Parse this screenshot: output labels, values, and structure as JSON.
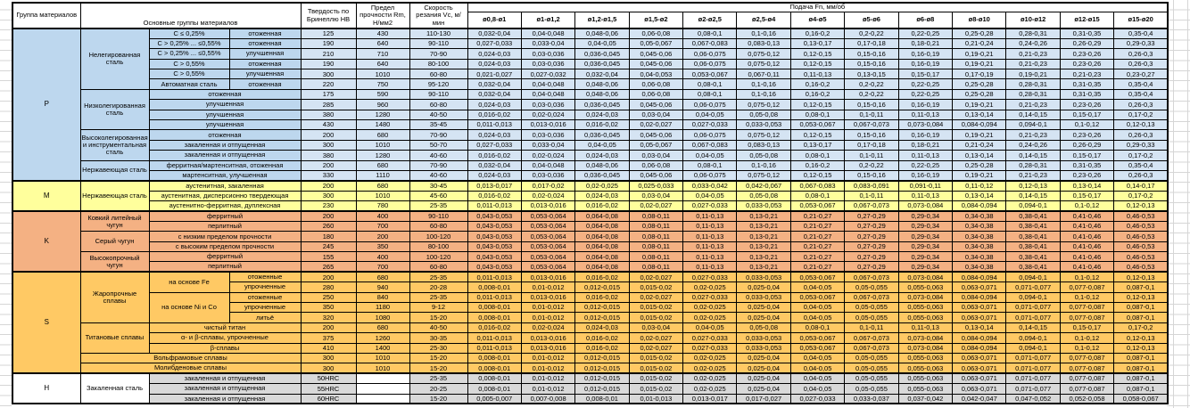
{
  "header": {
    "col_group": "Группа материалов",
    "col_main": "Основные группы материалов",
    "col_hb": "Твердость по Бринеллю HB",
    "col_rm": "Предел прочности Rm, Н/мм2",
    "col_vc": "Скорость резания Vc, м/мин",
    "feed_title": "Подача Fn, мм/об",
    "diameters": [
      "ø0,8-ø1",
      "ø1-ø1,2",
      "ø1,2-ø1,5",
      "ø1,5-ø2",
      "ø2-ø2,5",
      "ø2,5-ø4",
      "ø4-ø5",
      "ø5-ø6",
      "ø6-ø8",
      "ø8-ø10",
      "ø10-ø12",
      "ø12-ø15",
      "ø15-ø20"
    ]
  },
  "feed_sets": {
    "fs1": [
      "0,032-0,04",
      "0,04-0,048",
      "0,048-0,06",
      "0,06-0,08",
      "0,08-0,1",
      "0,1-0,16",
      "0,16-0,2",
      "0,2-0,22",
      "0,22-0,25",
      "0,25-0,28",
      "0,28-0,31",
      "0,31-0,35",
      "0,35-0,4"
    ],
    "fs2": [
      "0,027-0,033",
      "0,033-0,04",
      "0,04-0,05",
      "0,05-0,067",
      "0,067-0,083",
      "0,083-0,13",
      "0,13-0,17",
      "0,17-0,18",
      "0,18-0,21",
      "0,21-0,24",
      "0,24-0,26",
      "0,26-0,29",
      "0,29-0,33"
    ],
    "fs3": [
      "0,024-0,03",
      "0,03-0,036",
      "0,036-0,045",
      "0,045-0,06",
      "0,06-0,075",
      "0,075-0,12",
      "0,12-0,15",
      "0,15-0,16",
      "0,16-0,19",
      "0,19-0,21",
      "0,21-0,23",
      "0,23-0,26",
      "0,26-0,3"
    ],
    "fs4": [
      "0,021-0,027",
      "0,027-0,032",
      "0,032-0,04",
      "0,04-0,053",
      "0,053-0,067",
      "0,067-0,11",
      "0,11-0,13",
      "0,13-0,15",
      "0,15-0,17",
      "0,17-0,19",
      "0,19-0,21",
      "0,21-0,23",
      "0,23-0,27"
    ],
    "fs5": [
      "0,016-0,02",
      "0,02-0,024",
      "0,024-0,03",
      "0,03-0,04",
      "0,04-0,05",
      "0,05-0,08",
      "0,08-0,1",
      "0,1-0,11",
      "0,11-0,13",
      "0,13-0,14",
      "0,14-0,15",
      "0,15-0,17",
      "0,17-0,2"
    ],
    "fs6": [
      "0,011-0,013",
      "0,013-0,016",
      "0,016-0,02",
      "0,02-0,027",
      "0,027-0,033",
      "0,033-0,053",
      "0,053-0,067",
      "0,067-0,073",
      "0,073-0,084",
      "0,084-0,094",
      "0,094-0,1",
      "0,1-0,12",
      "0,12-0,13"
    ],
    "fs7": [
      "0,013-0,017",
      "0,017-0,02",
      "0,02-0,025",
      "0,025-0,033",
      "0,033-0,042",
      "0,042-0,067",
      "0,067-0,083",
      "0,083-0,091",
      "0,091-0,11",
      "0,11-0,12",
      "0,12-0,13",
      "0,13-0,14",
      "0,14-0,17"
    ],
    "fs8": [
      "0,043-0,053",
      "0,053-0,064",
      "0,064-0,08",
      "0,08-0,11",
      "0,11-0,13",
      "0,13-0,21",
      "0,21-0,27",
      "0,27-0,29",
      "0,29-0,34",
      "0,34-0,38",
      "0,38-0,41",
      "0,41-0,46",
      "0,46-0,53"
    ],
    "fs9": [
      "0,008-0,01",
      "0,01-0,012",
      "0,012-0,015",
      "0,015-0,02",
      "0,02-0,025",
      "0,025-0,04",
      "0,04-0,05",
      "0,05-0,055",
      "0,055-0,063",
      "0,063-0,071",
      "0,071-0,077",
      "0,077-0,087",
      "0,087-0,1"
    ],
    "fs10": [
      "0,005-0,007",
      "0,007-0,008",
      "0,008-0,01",
      "0,01-0,013",
      "0,013-0,017",
      "0,017-0,027",
      "0,027-0,033",
      "0,033-0,037",
      "0,037-0,042",
      "0,042-0,047",
      "0,047-0,052",
      "0,052-0,058",
      "0,058-0,067"
    ]
  },
  "groups": [
    {
      "letter": "P",
      "label_bg": "#BDD7EE",
      "data_bg": "#D5E4F3",
      "rows": [
        {
          "labels": [
            {
              "text": "Нелегированная сталь",
              "rowspan": 6
            },
            {
              "text": "C ≤ 0,25%"
            },
            {
              "text": "отоженная"
            }
          ],
          "hb": "125",
          "rm": "430",
          "vc": "110-130",
          "feed_set": "fs1"
        },
        {
          "labels": [
            {
              "text": "C > 0,25% ... ≤0,55%"
            },
            {
              "text": "отоженная"
            }
          ],
          "hb": "190",
          "rm": "640",
          "vc": "90-110",
          "feed_set": "fs2"
        },
        {
          "labels": [
            {
              "text": "C > 0,25% ... ≤0,55%"
            },
            {
              "text": "улучшенная"
            }
          ],
          "hb": "210",
          "rm": "710",
          "vc": "70-90",
          "feed_set": "fs3"
        },
        {
          "labels": [
            {
              "text": "C > 0,55%"
            },
            {
              "text": "отоженная"
            }
          ],
          "hb": "190",
          "rm": "640",
          "vc": "80-100",
          "feed_set": "fs3"
        },
        {
          "labels": [
            {
              "text": "C > 0,55%"
            },
            {
              "text": "улучшенная"
            }
          ],
          "hb": "300",
          "rm": "1010",
          "vc": "60-80",
          "feed_set": "fs4"
        },
        {
          "labels": [
            {
              "text": "Автоматная сталь"
            },
            {
              "text": "отоженная"
            }
          ],
          "hb": "220",
          "rm": "750",
          "vc": "95-120",
          "feed_set": "fs1"
        },
        {
          "labels": [
            {
              "text": "Низколегированная сталь",
              "rowspan": 4
            },
            {
              "text": "отоженная",
              "colspan": 2
            }
          ],
          "hb": "175",
          "rm": "590",
          "vc": "90-110",
          "feed_set": "fs1"
        },
        {
          "labels": [
            {
              "text": "улучшенная",
              "colspan": 2
            }
          ],
          "hb": "285",
          "rm": "960",
          "vc": "60-80",
          "feed_set": "fs3"
        },
        {
          "labels": [
            {
              "text": "улучшенная",
              "colspan": 2
            }
          ],
          "hb": "380",
          "rm": "1280",
          "vc": "40-50",
          "feed_set": "fs5"
        },
        {
          "labels": [
            {
              "text": "улучшенная",
              "colspan": 2
            }
          ],
          "hb": "430",
          "rm": "1480",
          "vc": "35-45",
          "feed_set": "fs6"
        },
        {
          "labels": [
            {
              "text": "Высоколегированная и инструментальная сталь",
              "rowspan": 3
            },
            {
              "text": "отоженная",
              "colspan": 2
            }
          ],
          "hb": "200",
          "rm": "680",
          "vc": "70-90",
          "feed_set": "fs3"
        },
        {
          "labels": [
            {
              "text": "закаленная и отпущенная",
              "colspan": 2
            }
          ],
          "hb": "300",
          "rm": "1010",
          "vc": "50-70",
          "feed_set": "fs2"
        },
        {
          "labels": [
            {
              "text": "закаленная и отпущенная",
              "colspan": 2
            }
          ],
          "hb": "380",
          "rm": "1280",
          "vc": "40-60",
          "feed_set": "fs5"
        },
        {
          "labels": [
            {
              "text": "Нержавеющая сталь",
              "rowspan": 2
            },
            {
              "text": "ферритная/мартенситная, отоженная",
              "colspan": 2
            }
          ],
          "hb": "200",
          "rm": "680",
          "vc": "70-90",
          "feed_set": "fs1"
        },
        {
          "labels": [
            {
              "text": "мартенситная, улучшенная",
              "colspan": 2
            }
          ],
          "hb": "330",
          "rm": "1110",
          "vc": "40-60",
          "feed_set": "fs3"
        }
      ]
    },
    {
      "letter": "M",
      "label_bg": "#FFFF9C",
      "data_bg": "#FFFF9C",
      "rows": [
        {
          "labels": [
            {
              "text": "Нержавеющая сталь",
              "rowspan": 3
            },
            {
              "text": "аустенитная, закаленная",
              "colspan": 2
            }
          ],
          "hb": "200",
          "rm": "680",
          "vc": "30-45",
          "feed_set": "fs7"
        },
        {
          "labels": [
            {
              "text": "аустенитная, дисперсионно твердеющая",
              "colspan": 2
            }
          ],
          "hb": "300",
          "rm": "1010",
          "vc": "45-60",
          "feed_set": "fs5"
        },
        {
          "labels": [
            {
              "text": "аустенитно-ферритная, дуплексная",
              "colspan": 2
            }
          ],
          "hb": "230",
          "rm": "780",
          "vc": "25-35",
          "feed_set": "fs6"
        }
      ]
    },
    {
      "letter": "K",
      "label_bg": "#F4B183",
      "data_bg": "#F4B183",
      "rows": [
        {
          "labels": [
            {
              "text": "Ковкий литейный чугун",
              "rowspan": 2
            },
            {
              "text": "ферритный",
              "colspan": 2
            }
          ],
          "hb": "200",
          "rm": "400",
          "vc": "90-110",
          "feed_set": "fs8"
        },
        {
          "labels": [
            {
              "text": "перлитный",
              "colspan": 2
            }
          ],
          "hb": "260",
          "rm": "700",
          "vc": "60-80",
          "feed_set": "fs8"
        },
        {
          "labels": [
            {
              "text": "Серый чугун",
              "rowspan": 2
            },
            {
              "text": "с низким пределом прочности",
              "colspan": 2
            }
          ],
          "hb": "180",
          "rm": "200",
          "vc": "100-120",
          "feed_set": "fs8"
        },
        {
          "labels": [
            {
              "text": "с высоким пределом прочности",
              "colspan": 2
            }
          ],
          "hb": "245",
          "rm": "350",
          "vc": "80-100",
          "feed_set": "fs8"
        },
        {
          "labels": [
            {
              "text": "Высокопрочный чугун",
              "rowspan": 2
            },
            {
              "text": "ферритный",
              "colspan": 2
            }
          ],
          "hb": "155",
          "rm": "400",
          "vc": "100-120",
          "feed_set": "fs8"
        },
        {
          "labels": [
            {
              "text": "перлитный",
              "colspan": 2
            }
          ],
          "hb": "265",
          "rm": "700",
          "vc": "60-80",
          "feed_set": "fs8"
        }
      ]
    },
    {
      "letter": "S",
      "label_bg": "#FFC964",
      "data_bg": "#FFC964",
      "rows": [
        {
          "labels": [
            {
              "text": "Жаропрочные сплавы",
              "rowspan": 5
            },
            {
              "text": "на основе Fe",
              "rowspan": 2
            },
            {
              "text": "отоженные"
            }
          ],
          "hb": "200",
          "rm": "680",
          "vc": "25-35",
          "feed_set": "fs6"
        },
        {
          "labels": [
            {
              "text": "упрочненные"
            }
          ],
          "hb": "280",
          "rm": "940",
          "vc": "20-28",
          "feed_set": "fs9"
        },
        {
          "labels": [
            {
              "text": "на основе Ni и Co",
              "rowspan": 3
            },
            {
              "text": "отоженные"
            }
          ],
          "hb": "250",
          "rm": "840",
          "vc": "25-35",
          "feed_set": "fs6"
        },
        {
          "labels": [
            {
              "text": "упрочненные"
            }
          ],
          "hb": "350",
          "rm": "1180",
          "vc": "9-12",
          "feed_set": "fs9"
        },
        {
          "labels": [
            {
              "text": "литьё"
            }
          ],
          "hb": "320",
          "rm": "1080",
          "vc": "15-20",
          "feed_set": "fs9"
        },
        {
          "labels": [
            {
              "text": "Титановые сплавы",
              "rowspan": 3
            },
            {
              "text": "чистый титан",
              "colspan": 2
            }
          ],
          "hb": "200",
          "rm": "680",
          "vc": "40-50",
          "feed_set": "fs5"
        },
        {
          "labels": [
            {
              "text": "α- и β-сплавы, упрочненные",
              "colspan": 2
            }
          ],
          "hb": "375",
          "rm": "1260",
          "vc": "30-35",
          "feed_set": "fs6"
        },
        {
          "labels": [
            {
              "text": "β-сплавы",
              "colspan": 2
            }
          ],
          "hb": "410",
          "rm": "1400",
          "vc": "25-30",
          "feed_set": "fs6"
        },
        {
          "labels": [
            {
              "text": "Вольфрамовые сплавы",
              "colspan": 3
            }
          ],
          "hb": "300",
          "rm": "1010",
          "vc": "15-20",
          "feed_set": "fs9"
        },
        {
          "labels": [
            {
              "text": "Молибденовые сплавы",
              "colspan": 3
            }
          ],
          "hb": "300",
          "rm": "1010",
          "vc": "15-20",
          "feed_set": "fs9"
        }
      ]
    },
    {
      "letter": "H",
      "label_bg": "#FFFFFF",
      "data_bg": "#D9D9D9",
      "rows": [
        {
          "labels": [
            {
              "text": "Закаленная сталь",
              "rowspan": 3,
              "bg": "#FFFFFF"
            },
            {
              "text": "закаленная и отпущенная",
              "colspan": 2,
              "bg": "#D9D9D9"
            }
          ],
          "hb": "50HRC",
          "rm": "",
          "rm_bg": "#FFFFFF",
          "vc": "25-35",
          "feed_set": "fs9"
        },
        {
          "labels": [
            {
              "text": "закаленная и отпущенная",
              "colspan": 2,
              "bg": "#D9D9D9"
            }
          ],
          "hb": "55HRC",
          "rm": "",
          "rm_bg": "#FFFFFF",
          "vc": "20-25",
          "feed_set": "fs9"
        },
        {
          "labels": [
            {
              "text": "закаленная и отпущенная",
              "colspan": 2,
              "bg": "#D9D9D9"
            }
          ],
          "hb": "60HRC",
          "rm": "",
          "rm_bg": "#FFFFFF",
          "vc": "15-20",
          "feed_set": "fs10"
        }
      ]
    }
  ]
}
